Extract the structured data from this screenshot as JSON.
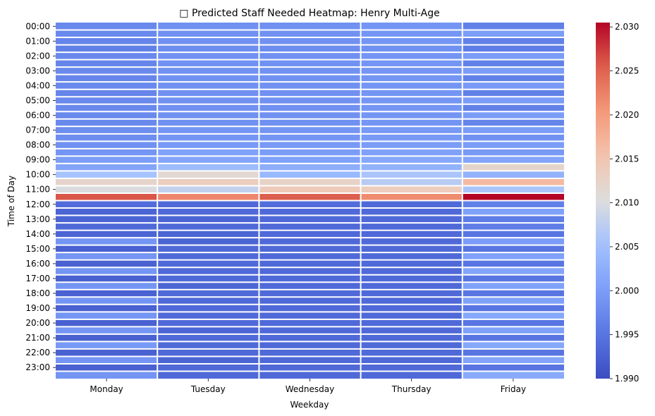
{
  "chart_data": {
    "type": "heatmap",
    "title": "□ Predicted Staff Needed Heatmap: Henry Multi-Age",
    "xlabel": "Weekday",
    "ylabel": "Time of Day",
    "x_categories": [
      "Monday",
      "Tuesday",
      "Wednesday",
      "Thursday",
      "Friday"
    ],
    "y_tick_labels": [
      "00:00",
      "01:00",
      "02:00",
      "03:00",
      "04:00",
      "05:00",
      "06:00",
      "07:00",
      "08:00",
      "09:00",
      "10:00",
      "11:00",
      "12:00",
      "13:00",
      "14:00",
      "15:00",
      "16:00",
      "17:00",
      "18:00",
      "19:00",
      "20:00",
      "21:00",
      "22:00",
      "23:00"
    ],
    "colormap": "coolwarm",
    "vmin": 1.99,
    "vmax": 2.0305,
    "colorbar_ticks": [
      1.99,
      1.995,
      2.0,
      2.005,
      2.01,
      2.015,
      2.02,
      2.025,
      2.03
    ],
    "colorbar_tick_labels": [
      "1.990",
      "1.995",
      "2.000",
      "2.005",
      "2.010",
      "2.015",
      "2.020",
      "2.025",
      "2.030"
    ],
    "values": [
      [
        1.9975,
        1.9985,
        1.9985,
        1.999,
        1.9965
      ],
      [
        1.9975,
        1.9985,
        1.9985,
        1.999,
        2.0
      ],
      [
        1.997,
        1.9985,
        1.9985,
        1.999,
        1.9965
      ],
      [
        1.9965,
        1.998,
        1.998,
        1.9985,
        1.996
      ],
      [
        1.9975,
        1.9985,
        1.9985,
        1.999,
        2.0
      ],
      [
        1.997,
        1.9985,
        1.9985,
        1.999,
        1.9965
      ],
      [
        1.9975,
        1.9985,
        1.9985,
        1.999,
        2.0
      ],
      [
        1.997,
        1.9985,
        1.9985,
        1.999,
        1.9965
      ],
      [
        1.9975,
        1.9985,
        1.9985,
        1.999,
        1.9995
      ],
      [
        1.997,
        1.9985,
        1.9985,
        1.999,
        1.9965
      ],
      [
        1.9975,
        1.9985,
        1.9985,
        1.999,
        2.0
      ],
      [
        1.9975,
        1.9985,
        1.9985,
        1.999,
        1.9965
      ],
      [
        1.9975,
        1.9985,
        1.9985,
        1.999,
        2.0
      ],
      [
        1.9975,
        1.9985,
        1.9985,
        1.999,
        1.997
      ],
      [
        1.998,
        1.999,
        1.999,
        1.9995,
        2.0
      ],
      [
        1.998,
        1.999,
        1.999,
        1.9995,
        1.9985
      ],
      [
        1.9985,
        1.9995,
        1.9995,
        2.0,
        2.0
      ],
      [
        1.999,
        2.0005,
        2.0,
        2.0005,
        1.9995
      ],
      [
        2.0,
        2.001,
        2.0005,
        2.0015,
        2.001
      ],
      [
        2.001,
        2.0045,
        2.0025,
        2.003,
        2.012
      ],
      [
        2.0055,
        2.0115,
        2.004,
        2.006,
        2.003
      ],
      [
        2.012,
        2.0135,
        2.0125,
        2.007,
        2.0165
      ],
      [
        2.01,
        2.008,
        2.014,
        2.0135,
        2.006
      ],
      [
        2.026,
        2.022,
        2.0255,
        2.0215,
        2.0305
      ],
      [
        1.994,
        1.9935,
        1.994,
        1.9935,
        1.9965
      ],
      [
        1.993,
        1.9935,
        1.9935,
        1.9935,
        2.0005
      ],
      [
        1.993,
        1.993,
        1.9935,
        1.9935,
        1.996
      ],
      [
        1.9935,
        1.9935,
        1.9935,
        1.9935,
        1.996
      ],
      [
        1.993,
        1.993,
        1.9935,
        1.9935,
        1.995
      ],
      [
        1.999,
        1.993,
        1.9935,
        1.9935,
        2.0
      ],
      [
        1.9925,
        1.9935,
        1.9935,
        1.9935,
        1.995
      ],
      [
        1.999,
        1.9935,
        1.9935,
        1.9935,
        2.0005
      ],
      [
        1.9925,
        1.9935,
        1.9935,
        1.9935,
        1.995
      ],
      [
        1.999,
        1.9935,
        1.9935,
        1.9935,
        2.001
      ],
      [
        1.9925,
        1.9935,
        1.9935,
        1.9935,
        1.995
      ],
      [
        1.999,
        1.993,
        1.9935,
        1.9935,
        2.0005
      ],
      [
        1.9925,
        1.9935,
        1.9935,
        1.9935,
        1.995
      ],
      [
        1.999,
        1.9935,
        1.9935,
        1.9935,
        2.0005
      ],
      [
        1.9925,
        1.9935,
        1.9935,
        1.9935,
        1.995
      ],
      [
        1.999,
        1.9935,
        1.9935,
        1.9935,
        2.0015
      ],
      [
        1.9925,
        1.9935,
        1.9935,
        1.9935,
        1.995
      ],
      [
        1.999,
        1.993,
        1.9935,
        1.9935,
        2.0005
      ],
      [
        1.9925,
        1.9935,
        1.9935,
        1.9935,
        1.995
      ],
      [
        1.9995,
        1.9935,
        1.9935,
        1.9935,
        2.0015
      ],
      [
        1.9925,
        1.9935,
        1.9935,
        1.9935,
        1.995
      ],
      [
        1.999,
        1.993,
        1.9935,
        1.9935,
        2.001
      ],
      [
        1.9925,
        1.9935,
        1.9935,
        1.9935,
        1.995
      ],
      [
        1.999,
        1.9935,
        1.9935,
        1.9935,
        2.002
      ]
    ]
  }
}
